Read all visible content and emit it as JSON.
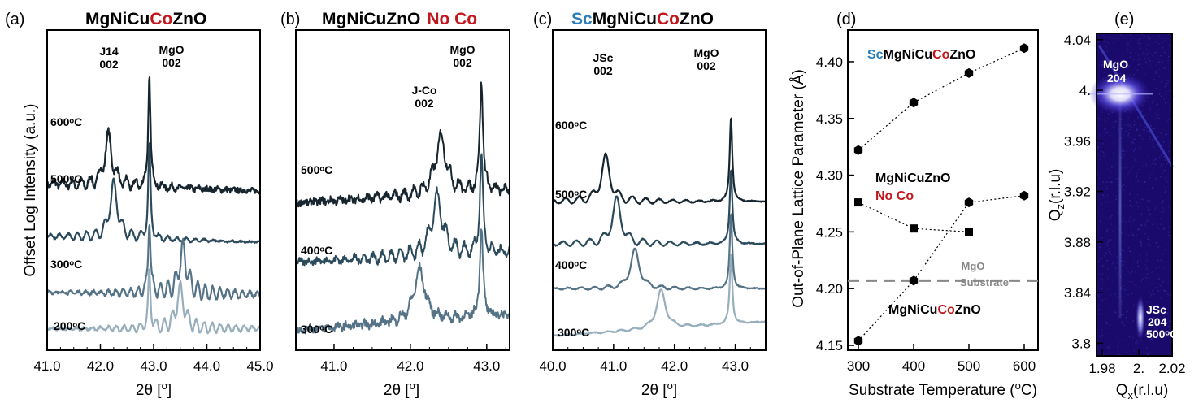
{
  "colors": {
    "co_red": "#c4171d",
    "sc_blue": "#2a7db8",
    "curve_dark": "#17252e",
    "curve_mid1": "#2b4a5c",
    "curve_mid2": "#557386",
    "curve_light": "#97aebc",
    "rsm_background": "#1a0a6b"
  },
  "panels": {
    "a": {
      "label": "(a)",
      "title_parts": [
        "MgNiCuCoZnO",
        "MgNiCu",
        "Co",
        "ZnO"
      ],
      "xlabel": "2θ [°]",
      "ylabel": "Offset Log Intensity (a.u.)",
      "ann_j14": "J14",
      "ann_j14_b": "002",
      "ann_mgo": "MgO",
      "ann_mgo_b": "002",
      "temps": [
        "600ᵒC",
        "500ᵒC",
        "300ᵒC",
        "200ᵒC"
      ]
    },
    "b": {
      "label": "(b)",
      "title_parts": [
        "MgNiCuZnO",
        "No Co"
      ],
      "xlabel": "2θ [°]",
      "ann_jco": "J-Co",
      "ann_jco_b": "002",
      "ann_mgo": "MgO",
      "ann_mgo_b": "002",
      "temps": [
        "500ᵒC",
        "400ᵒC",
        "300ᵒC"
      ]
    },
    "c": {
      "label": "(c)",
      "title_parts": [
        "Sc",
        "MgNiCu",
        "Co",
        "ZnO"
      ],
      "xlabel": "2θ [°]",
      "ann_jsc": "JSc",
      "ann_jsc_b": "002",
      "ann_mgo": "MgO",
      "ann_mgo_b": "002",
      "temps": [
        "600ᵒC",
        "500ᵒC",
        "400ᵒC",
        "300ᵒC"
      ]
    },
    "d": {
      "label": "(d)",
      "xlabel": "Substrate Temperature (ᵒC)",
      "ylabel": "Out-of-Plane Lattice Parameter (Å)",
      "series_sc_parts": [
        "Sc",
        "MgNiCu",
        "Co",
        "ZnO"
      ],
      "series_noco_a": "MgNiCuZnO",
      "series_noco_b": "No Co",
      "series_co_parts": [
        "MgNiCu",
        "Co",
        "ZnO"
      ],
      "ref_a": "MgO",
      "ref_b": "Substrate"
    },
    "e": {
      "label": "(e)",
      "xlabel": "Qₓ(r.l.u)",
      "ylabel": "Q_z(r.l.u)",
      "ann_mgo": "MgO",
      "ann_mgo_b": "204",
      "ann_jsc": "JSc",
      "ann_jsc_b": "204",
      "ann_jsc_c": "500ᵒC"
    }
  },
  "chart_data": [
    {
      "panel": "a",
      "type": "line",
      "title": "MgNiCuCoZnO",
      "xlabel": "2θ [°]",
      "ylabel": "Offset Log Intensity (a.u.)",
      "xlim": [
        41.0,
        45.0
      ],
      "x_ticks": [
        "41.0",
        "42.0",
        "43.0",
        "44.0",
        "45.0"
      ],
      "series": [
        {
          "name": "600ᵒC",
          "offset": 3.0,
          "film_peak": 42.15,
          "film_height": 1.0,
          "substrate_peak": 42.92,
          "substrate_height": 2.4,
          "fringe_period": 0.17,
          "fringe_amp": 0.18,
          "noise": 0.12,
          "baseline_slope": -0.15
        },
        {
          "name": "500ᵒC",
          "offset": 1.9,
          "film_peak": 42.25,
          "film_height": 1.1,
          "substrate_peak": 42.92,
          "substrate_height": 2.0,
          "fringe_period": 0.17,
          "fringe_amp": 0.16,
          "noise": 0.04,
          "baseline_slope": -0.12
        },
        {
          "name": "300ᵒC",
          "offset": 0.75,
          "film_peak": 43.55,
          "film_height": 0.9,
          "substrate_peak": 42.92,
          "substrate_height": 1.6,
          "fringe_period": 0.14,
          "fringe_amp": 0.25,
          "noise": 0.06,
          "baseline_slope": -0.05
        },
        {
          "name": "200ᵒC",
          "offset": 0.0,
          "film_peak": 43.5,
          "film_height": 0.8,
          "substrate_peak": 42.92,
          "substrate_height": 1.2,
          "fringe_period": 0.15,
          "fringe_amp": 0.2,
          "noise": 0.05,
          "baseline_slope": 0.0
        }
      ]
    },
    {
      "panel": "b",
      "type": "line",
      "title": "MgNiCuZnO No Co",
      "xlabel": "2θ [°]",
      "xlim": [
        40.5,
        43.3
      ],
      "x_ticks": [
        "41.0",
        "42.0",
        "43.0"
      ],
      "series": [
        {
          "name": "500ᵒC",
          "offset": 2.6,
          "film_peak": 42.4,
          "film_height": 1.1,
          "substrate_peak": 42.93,
          "substrate_height": 2.2,
          "fringe_period": 0.12,
          "fringe_amp": 0.15,
          "noise": 0.14,
          "baseline_slope": 0.25
        },
        {
          "name": "400ᵒC",
          "offset": 1.4,
          "film_peak": 42.35,
          "film_height": 1.1,
          "substrate_peak": 42.93,
          "substrate_height": 1.9,
          "fringe_period": 0.12,
          "fringe_amp": 0.2,
          "noise": 0.12,
          "baseline_slope": 0.2
        },
        {
          "name": "300ᵒC",
          "offset": 0.1,
          "film_peak": 42.12,
          "film_height": 1.0,
          "substrate_peak": 42.93,
          "substrate_height": 1.8,
          "fringe_period": 0.12,
          "fringe_amp": 0.1,
          "noise": 0.15,
          "baseline_slope": 0.3
        }
      ]
    },
    {
      "panel": "c",
      "type": "line",
      "title": "ScMgNiCuCoZnO",
      "xlabel": "2θ [°]",
      "xlim": [
        40.0,
        43.5
      ],
      "x_ticks": [
        "40.0",
        "41.0",
        "42.0",
        "43.0"
      ],
      "series": [
        {
          "name": "600ᵒC",
          "offset": 2.7,
          "film_peak": 40.87,
          "film_height": 0.9,
          "substrate_peak": 42.93,
          "substrate_height": 1.8,
          "fringe_period": 0.22,
          "fringe_amp": 0.12,
          "noise": 0.02,
          "baseline_slope": 0.0
        },
        {
          "name": "500ᵒC",
          "offset": 1.8,
          "film_peak": 41.05,
          "film_height": 0.9,
          "substrate_peak": 42.93,
          "substrate_height": 1.6,
          "fringe_period": 0.22,
          "fringe_amp": 0.12,
          "noise": 0.02,
          "baseline_slope": 0.0
        },
        {
          "name": "400ᵒC",
          "offset": 0.85,
          "film_peak": 41.35,
          "film_height": 0.8,
          "substrate_peak": 42.93,
          "substrate_height": 1.6,
          "fringe_period": 0.22,
          "fringe_amp": 0.06,
          "noise": 0.02,
          "baseline_slope": 0.0
        },
        {
          "name": "300ᵒC",
          "offset": 0.0,
          "film_peak": 41.78,
          "film_height": 0.8,
          "substrate_peak": 42.93,
          "substrate_height": 1.5,
          "fringe_period": 0.22,
          "fringe_amp": 0.04,
          "noise": 0.02,
          "baseline_slope": 0.3
        }
      ]
    },
    {
      "panel": "d",
      "type": "scatter",
      "xlabel": "Substrate Temperature (ᵒC)",
      "ylabel": "Out-of-Plane Lattice Parameter (Å)",
      "xlim": [
        290,
        610
      ],
      "ylim": [
        4.14,
        4.42
      ],
      "x_ticks": [
        "300",
        "400",
        "500",
        "600"
      ],
      "y_ticks": [
        "4.15",
        "4.20",
        "4.25",
        "4.30",
        "4.35",
        "4.40"
      ],
      "reference_line": {
        "name": "MgO Substrate",
        "y": 4.207
      },
      "series": [
        {
          "name": "ScMgNiCuCoZnO",
          "x": [
            300,
            400,
            500,
            600
          ],
          "y": [
            4.322,
            4.364,
            4.39,
            4.412
          ],
          "marker": "hexagon"
        },
        {
          "name": "MgNiCuZnO No Co",
          "x": [
            300,
            400,
            500
          ],
          "y": [
            4.276,
            4.253,
            4.25
          ],
          "marker": "square"
        },
        {
          "name": "MgNiCuCoZnO",
          "x": [
            300,
            400,
            500,
            600
          ],
          "y": [
            4.154,
            4.207,
            4.276,
            4.282
          ],
          "marker": "hexagon"
        }
      ]
    },
    {
      "panel": "e",
      "type": "heatmap",
      "xlabel": "Qₓ(r.l.u)",
      "ylabel": "Q_z(r.l.u)",
      "xlim": [
        1.98,
        2.02
      ],
      "ylim": [
        3.79,
        4.045
      ],
      "x_ticks": [
        "1.98",
        "2.",
        "2.02"
      ],
      "y_ticks": [
        "3.8",
        "3.84",
        "3.88",
        "3.92",
        "3.96",
        "4.",
        "4.04"
      ],
      "peaks": [
        {
          "name": "MgO 204",
          "qx": 2.0,
          "qz": 3.997
        },
        {
          "name": "JSc 204",
          "qx": 2.0,
          "qz": 3.82
        }
      ]
    }
  ]
}
